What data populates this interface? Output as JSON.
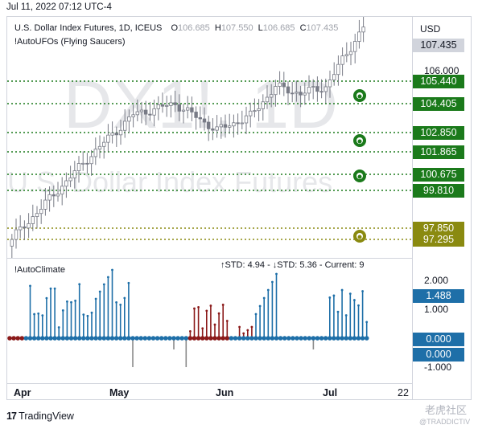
{
  "header": {
    "date": "Jul 11, 2022 07:12 UTC-4",
    "currency": "USD"
  },
  "legend": {
    "symbol": "U.S. Dollar Index Futures, 1D, ICEUS",
    "o_label": "O",
    "o_value": "106.685",
    "h_label": "H",
    "h_value": "107.550",
    "l_label": "L",
    "l_value": "106.685",
    "c_label": "C",
    "c_value": "107.435",
    "indicator": "!AutoUFOs (Flying Saucers)"
  },
  "watermark": {
    "ticker": "DX1!, 1D",
    "name": "U.S. Dollar Index Futures"
  },
  "price_axis": {
    "current": "107.435",
    "tick_106": "106.000",
    "levels": [
      {
        "label": "105.440",
        "color": "#1b7a1b"
      },
      {
        "label": "104.405",
        "color": "#1b7a1b"
      },
      {
        "label": "102.850",
        "color": "#1b7a1b"
      },
      {
        "label": "101.865",
        "color": "#1b7a1b"
      },
      {
        "label": "100.675",
        "color": "#1b7a1b"
      },
      {
        "label": "99.810",
        "color": "#1b7a1b"
      },
      {
        "label": "97.850",
        "color": "#8a8a10"
      },
      {
        "label": "97.295",
        "color": "#8a8a10"
      }
    ]
  },
  "climate": {
    "title": "!AutoClimate",
    "stats": "↑STD: 4.94 - ↓STD: 5.36 - Current: 9",
    "tick_top": "2.000",
    "tick_value": "1.488",
    "tick_mid": "1.000",
    "tick_zero_a": "0.000",
    "tick_zero_b": "0.000",
    "tick_bottom": "-1.000"
  },
  "x_axis": [
    "Apr",
    "May",
    "Jun",
    "Jul",
    "22"
  ],
  "footer": {
    "brand": "TradingView",
    "wm_cn": "老虎社区",
    "wm_handle": "@TRADDICTIV"
  },
  "colors": {
    "up": "#ffffff",
    "down": "#787b86",
    "level_green": "#1b7a1b",
    "level_olive": "#8a8a10",
    "climate_blue": "#1e6fa8",
    "climate_red": "#8b1a1a",
    "climate_gray": "#8a8a8a"
  }
}
